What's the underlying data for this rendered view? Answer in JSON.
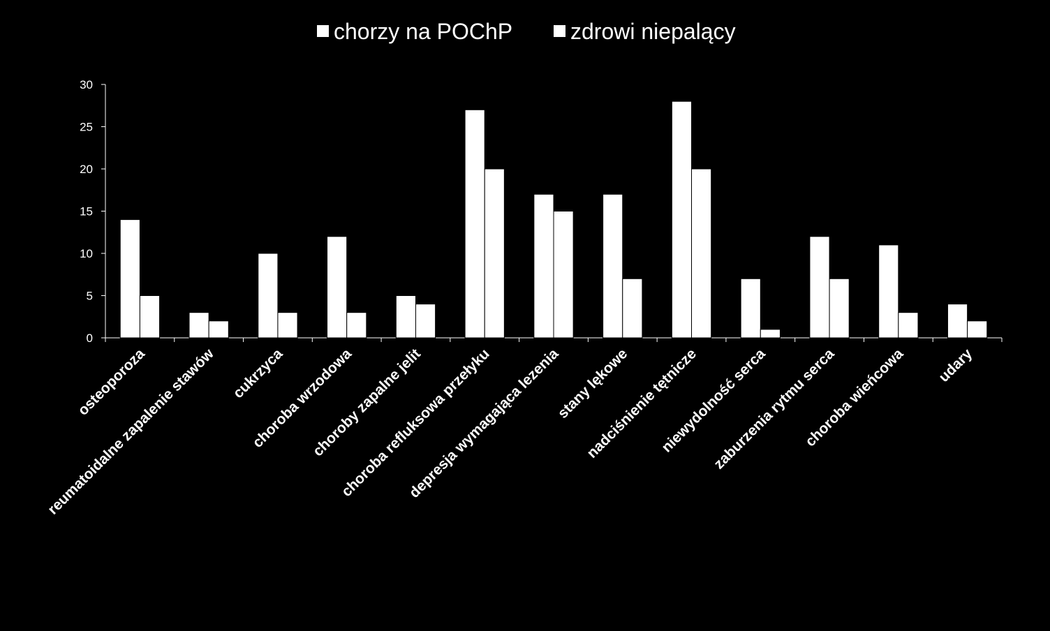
{
  "chart_data": {
    "type": "bar",
    "title": "",
    "xlabel": "",
    "ylabel": "",
    "ylim": [
      0,
      30
    ],
    "yticks": [
      0,
      5,
      10,
      15,
      20,
      25,
      30
    ],
    "grid": false,
    "legend_position": "top",
    "categories": [
      "osteoporoza",
      "reumatoidalne zapalenie stawów",
      "cukrzyca",
      "choroba wrzodowa",
      "choroby zapalne jelit",
      "choroba refluksowa przełyku",
      "depresja wymagająca lezenia",
      "stany lękowe",
      "nadciśnienie tętnicze",
      "niewydolność serca",
      "zaburzenia rytmu serca",
      "choroba wieńcowa",
      "udary"
    ],
    "series": [
      {
        "name": "chorzy na POChP",
        "color": "#ffffff",
        "values": [
          14,
          3,
          10,
          12,
          5,
          27,
          17,
          17,
          28,
          7,
          12,
          11,
          4
        ]
      },
      {
        "name": "zdrowi niepalący",
        "color": "#ffffff",
        "values": [
          5,
          2,
          3,
          3,
          4,
          20,
          15,
          7,
          20,
          1,
          7,
          3,
          2
        ]
      }
    ]
  }
}
